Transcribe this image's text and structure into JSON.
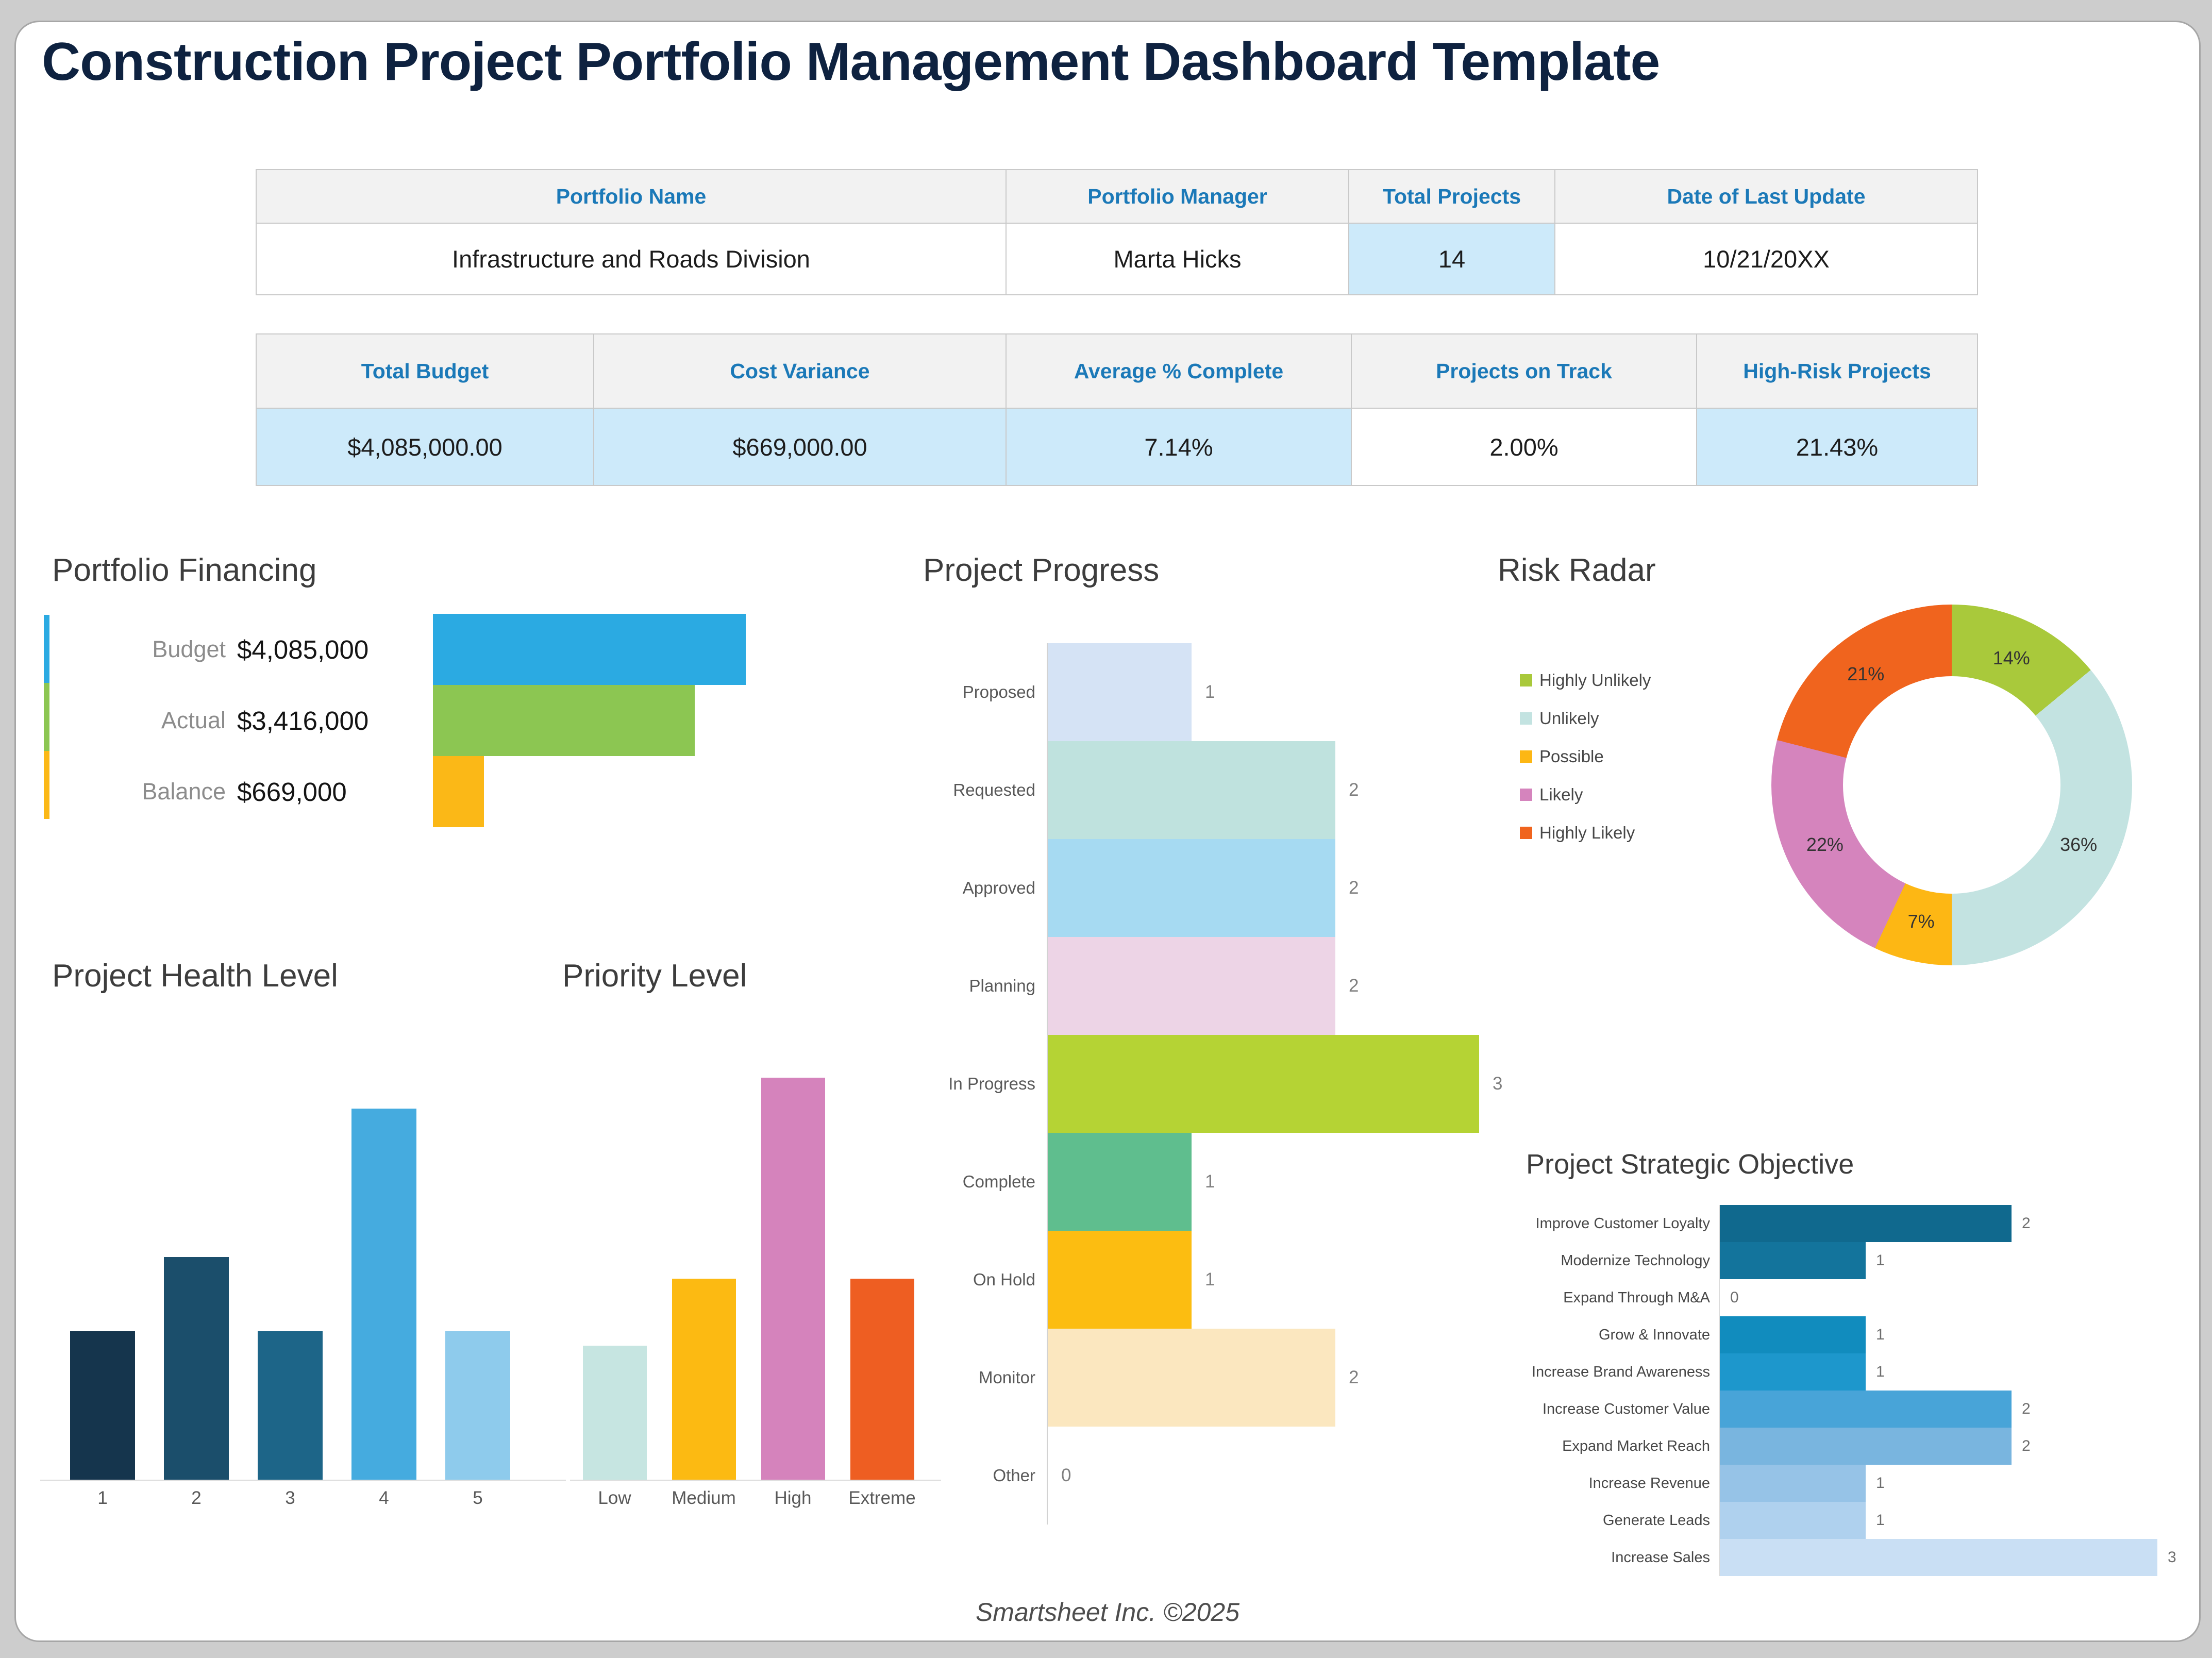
{
  "page": {
    "title": "Construction Project Portfolio Management Dashboard Template",
    "footer": "Smartsheet Inc. ©2025"
  },
  "info_table": {
    "headers": [
      "Portfolio Name",
      "Portfolio Manager",
      "Total Projects",
      "Date of Last Update"
    ],
    "values": [
      "Infrastructure and Roads Division",
      "Marta Hicks",
      "14",
      "10/21/20XX"
    ],
    "highlight_flags": [
      false,
      false,
      true,
      false
    ]
  },
  "metrics_table": {
    "headers": [
      "Total Budget",
      "Cost Variance",
      "Average % Complete",
      "Projects on Track",
      "High-Risk Projects"
    ],
    "values": [
      "$4,085,000.00",
      "$669,000.00",
      "7.14%",
      "2.00%",
      "21.43%"
    ],
    "highlight_flags": [
      true,
      true,
      true,
      false,
      true
    ]
  },
  "colors": {
    "header_blue": "#1B79B8",
    "cell_highlight_blue": "#CDEAFA",
    "title_navy": "#0E2240"
  },
  "chart_data": [
    {
      "id": "financing",
      "type": "bar",
      "orientation": "horizontal",
      "title": "Portfolio Financing",
      "categories": [
        "Budget",
        "Actual",
        "Balance"
      ],
      "values": [
        4085000,
        3416000,
        669000
      ],
      "value_labels": [
        "$4,085,000",
        "$3,416,000",
        "$669,000"
      ],
      "colors": [
        "#2BAAE2",
        "#8CC652",
        "#FBB817"
      ],
      "xlim": [
        0,
        4085000
      ],
      "grid": false,
      "legend": "color-strip-left"
    },
    {
      "id": "progress",
      "type": "bar",
      "orientation": "horizontal",
      "title": "Project Progress",
      "categories": [
        "Proposed",
        "Requested",
        "Approved",
        "Planning",
        "In Progress",
        "Complete",
        "On Hold",
        "Monitor",
        "Other"
      ],
      "values": [
        1,
        2,
        2,
        2,
        3,
        1,
        1,
        2,
        0
      ],
      "colors": [
        "#D5E3F5",
        "#BFE2DE",
        "#A6DAF2",
        "#EDD4E6",
        "#B5D334",
        "#5FBE8E",
        "#FCBD11",
        "#FBE7BF",
        "#D9D9D9"
      ],
      "xlim": [
        0,
        3
      ],
      "grid": false,
      "value_labels_shown": true
    },
    {
      "id": "risk",
      "type": "pie",
      "donut": true,
      "title": "Risk Radar",
      "categories": [
        "Highly Unlikely",
        "Unlikely",
        "Possible",
        "Likely",
        "Highly Likely"
      ],
      "values": [
        14,
        36,
        7,
        22,
        21
      ],
      "slice_labels": [
        "14%",
        "36%",
        "7%",
        "22%",
        "21%"
      ],
      "colors": [
        "#A9C93B",
        "#C3E3E1",
        "#FDB714",
        "#D584BD",
        "#F0641E"
      ],
      "legend_position": "left",
      "start_angle_deg": 0
    },
    {
      "id": "health",
      "type": "bar",
      "orientation": "vertical",
      "title": "Project Health Level",
      "categories": [
        "1",
        "2",
        "3",
        "4",
        "5"
      ],
      "values": [
        2,
        3,
        2,
        5,
        2
      ],
      "colors": [
        "#15354D",
        "#1B4E6B",
        "#1D6588",
        "#45ABDF",
        "#8ECBEC"
      ],
      "ylim": [
        0,
        5
      ],
      "grid": false
    },
    {
      "id": "priority",
      "type": "bar",
      "orientation": "vertical",
      "title": "Priority Level",
      "categories": [
        "Low",
        "Medium",
        "High",
        "Extreme"
      ],
      "values": [
        2,
        3,
        6,
        3
      ],
      "colors": [
        "#C6E5E1",
        "#FCBA12",
        "#D583BC",
        "#EE5E22"
      ],
      "ylim": [
        0,
        6
      ],
      "grid": false
    },
    {
      "id": "strategic",
      "type": "bar",
      "orientation": "horizontal",
      "title": "Project Strategic Objective",
      "categories": [
        "Improve Customer Loyalty",
        "Modernize Technology",
        "Expand Through M&A",
        "Grow & Innovate",
        "Increase Brand Awareness",
        "Increase Customer Value",
        "Expand Market Reach",
        "Increase Revenue",
        "Generate Leads",
        "Increase Sales"
      ],
      "values": [
        2,
        1,
        0,
        1,
        1,
        2,
        2,
        1,
        1,
        3
      ],
      "colors": [
        "#10698E",
        "#13749C",
        "#1580AA",
        "#118CBE",
        "#1D97CC",
        "#48A4D8",
        "#79B5DF",
        "#96C3E7",
        "#AFD1EE",
        "#C9DFF4"
      ],
      "xlim": [
        0,
        3
      ],
      "grid": false,
      "value_labels_shown": true
    }
  ]
}
